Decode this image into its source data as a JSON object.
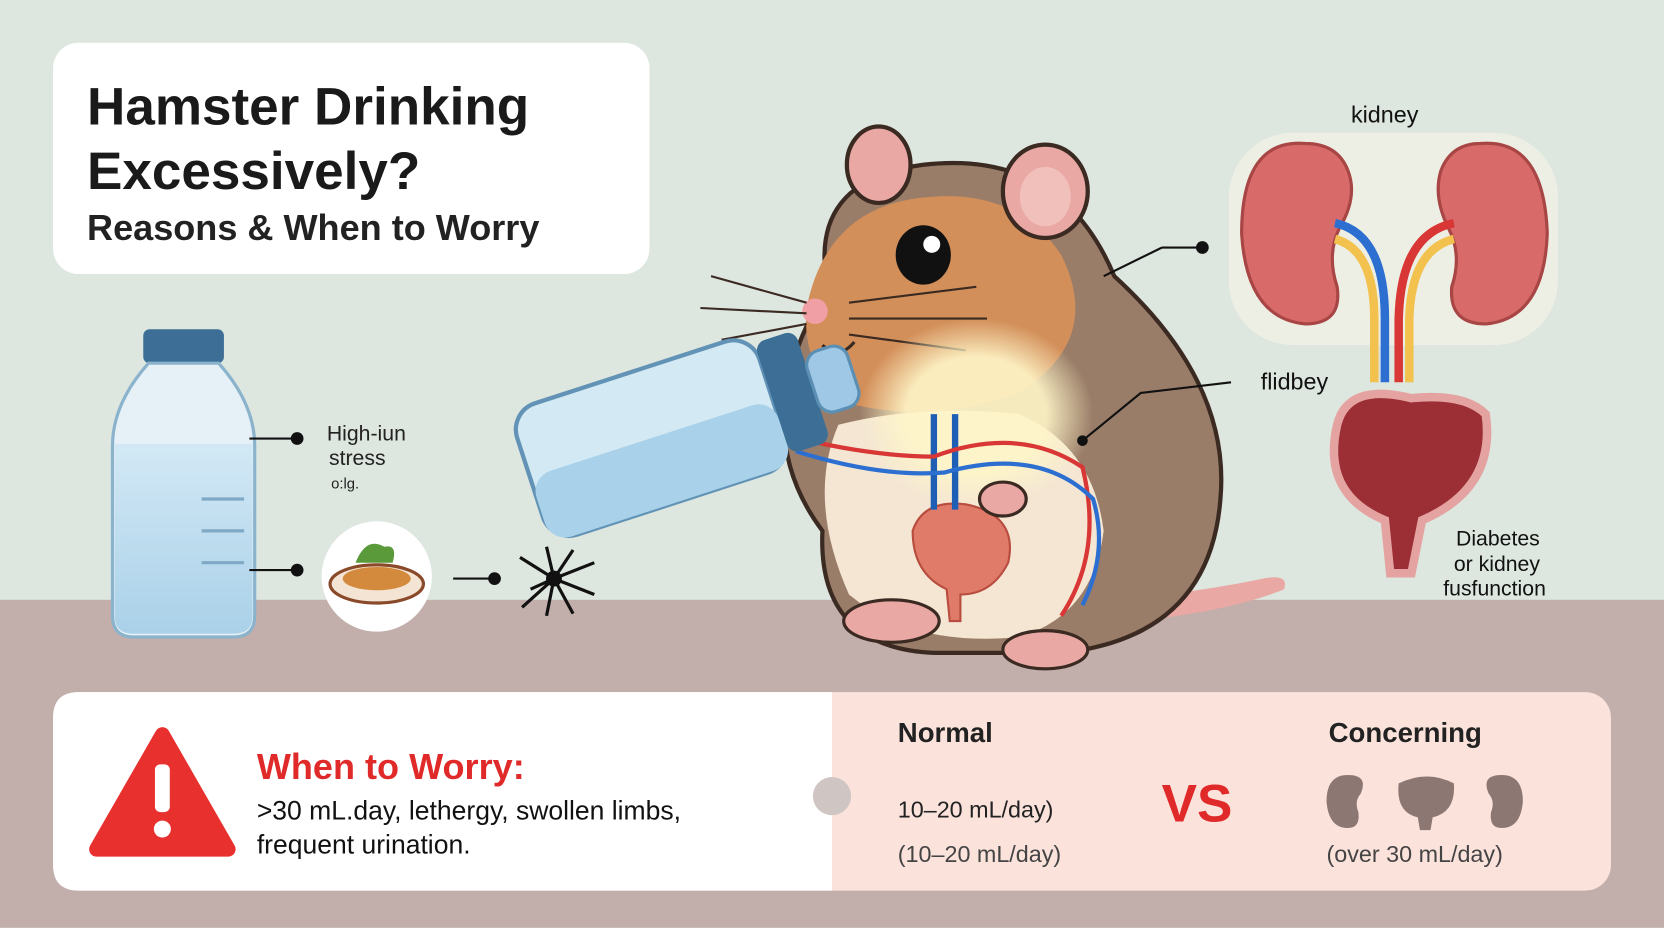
{
  "header": {
    "title_lines": [
      "Hamster Drinking",
      "Excessively?"
    ],
    "subtitle": "Reasons & When to Worry"
  },
  "left_labels": [
    "High-iun",
    "stress",
    "o:lg."
  ],
  "organ_labels": {
    "top": "kidney",
    "middle": "flidbey",
    "bottom_lines": [
      "Diabetes",
      "or kidney",
      "fusfunction"
    ]
  },
  "warning": {
    "heading": "When to Worry:",
    "lines": [
      ">30 mL.day, lethergy, swollen limbs,",
      "frequent urination."
    ]
  },
  "comparison": {
    "normal": {
      "heading": "Normal",
      "lines": [
        "10–20 mL/day)",
        "(10–20 mL/day)"
      ]
    },
    "versus": "VS",
    "concerning": {
      "heading": "Concerning",
      "lines": [
        "(over 30 mL/day)"
      ]
    }
  }
}
